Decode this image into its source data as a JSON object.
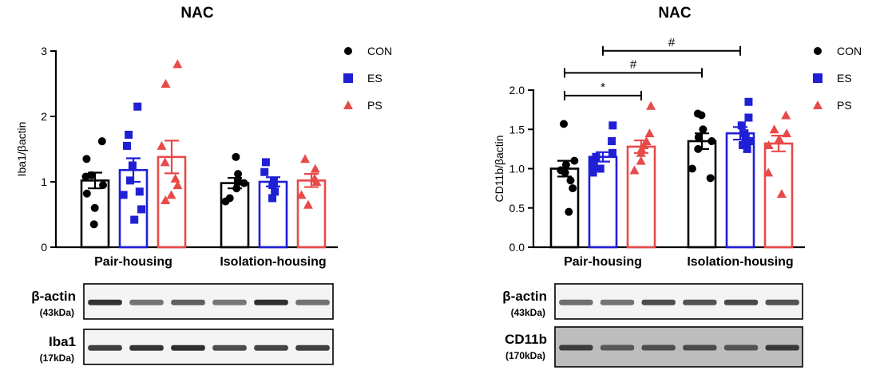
{
  "colors": {
    "CON": "#000000",
    "ES": "#1f1fd6",
    "PS": "#e84a4a"
  },
  "legend": [
    {
      "name": "CON",
      "marker": "circle",
      "color": "#000000"
    },
    {
      "name": "ES",
      "marker": "square",
      "color": "#1f1fd6"
    },
    {
      "name": "PS",
      "marker": "triangle",
      "color": "#e84a4a"
    }
  ],
  "chart_data": [
    {
      "type": "bar",
      "title": "NAC",
      "ylabel": "Iba1/βactin",
      "ylim": [
        0,
        3
      ],
      "yticks": [
        "0",
        "1",
        "2",
        "3"
      ],
      "categories": [
        "Pair-housing",
        "Isolation-housing"
      ],
      "series": [
        {
          "name": "CON",
          "values": [
            1.02,
            0.98
          ],
          "sem": [
            0.12,
            0.08
          ],
          "points": [
            [
              1.62,
              1.35,
              1.1,
              1.08,
              0.95,
              0.82,
              0.6,
              0.35
            ],
            [
              1.38,
              1.12,
              1.0,
              0.98,
              0.9,
              0.75,
              0.7
            ]
          ]
        },
        {
          "name": "ES",
          "values": [
            1.18,
            1.0
          ],
          "sem": [
            0.18,
            0.07
          ],
          "points": [
            [
              2.15,
              1.72,
              1.55,
              1.25,
              1.02,
              0.85,
              0.8,
              0.58,
              0.42
            ],
            [
              1.3,
              1.15,
              1.0,
              0.95,
              0.85,
              0.75
            ]
          ]
        },
        {
          "name": "PS",
          "values": [
            1.38,
            1.02
          ],
          "sem": [
            0.25,
            0.1
          ],
          "points": [
            [
              2.8,
              2.5,
              1.55,
              1.3,
              1.05,
              0.95,
              0.8,
              0.72
            ],
            [
              1.35,
              1.2,
              1.05,
              1.0,
              0.8,
              0.65
            ]
          ]
        }
      ],
      "significance": [],
      "blots": [
        {
          "label": "β-actin",
          "sub": "(43kDa)"
        },
        {
          "label": "Iba1",
          "sub": "(17kDa)"
        }
      ]
    },
    {
      "type": "bar",
      "title": "NAC",
      "ylabel": "CD11b/βactin",
      "ylim": [
        0,
        2.0
      ],
      "yticks": [
        "0.0",
        "0.5",
        "1.0",
        "1.5",
        "2.0"
      ],
      "categories": [
        "Pair-housing",
        "Isolation-housing"
      ],
      "series": [
        {
          "name": "CON",
          "values": [
            1.0,
            1.35
          ],
          "sem": [
            0.1,
            0.1
          ],
          "points": [
            [
              1.57,
              1.1,
              1.05,
              0.98,
              0.95,
              0.85,
              0.75,
              0.45
            ],
            [
              1.7,
              1.68,
              1.5,
              1.4,
              1.35,
              1.25,
              1.0,
              0.88
            ]
          ]
        },
        {
          "name": "ES",
          "values": [
            1.15,
            1.45
          ],
          "sem": [
            0.06,
            0.08
          ],
          "points": [
            [
              1.55,
              1.35,
              1.2,
              1.15,
              1.1,
              1.05,
              1.0,
              0.95
            ],
            [
              1.85,
              1.65,
              1.55,
              1.45,
              1.4,
              1.35,
              1.3,
              1.25
            ]
          ]
        },
        {
          "name": "PS",
          "values": [
            1.28,
            1.32
          ],
          "sem": [
            0.08,
            0.1
          ],
          "points": [
            [
              1.8,
              1.45,
              1.35,
              1.3,
              1.25,
              1.2,
              1.1,
              0.98
            ],
            [
              1.68,
              1.5,
              1.45,
              1.38,
              1.3,
              0.95,
              0.68
            ]
          ]
        }
      ],
      "significance": [
        {
          "label": "*",
          "from": [
            0,
            0
          ],
          "to": [
            0,
            2
          ],
          "level": 1.93
        },
        {
          "label": "#",
          "from": [
            0,
            0
          ],
          "to": [
            1,
            0
          ],
          "level": 2.22
        },
        {
          "label": "#",
          "from": [
            0,
            1
          ],
          "to": [
            1,
            1
          ],
          "level": 2.5
        }
      ],
      "blots": [
        {
          "label": "β-actin",
          "sub": "(43kDa)"
        },
        {
          "label": "CD11b",
          "sub": "(170kDa)"
        }
      ]
    }
  ]
}
